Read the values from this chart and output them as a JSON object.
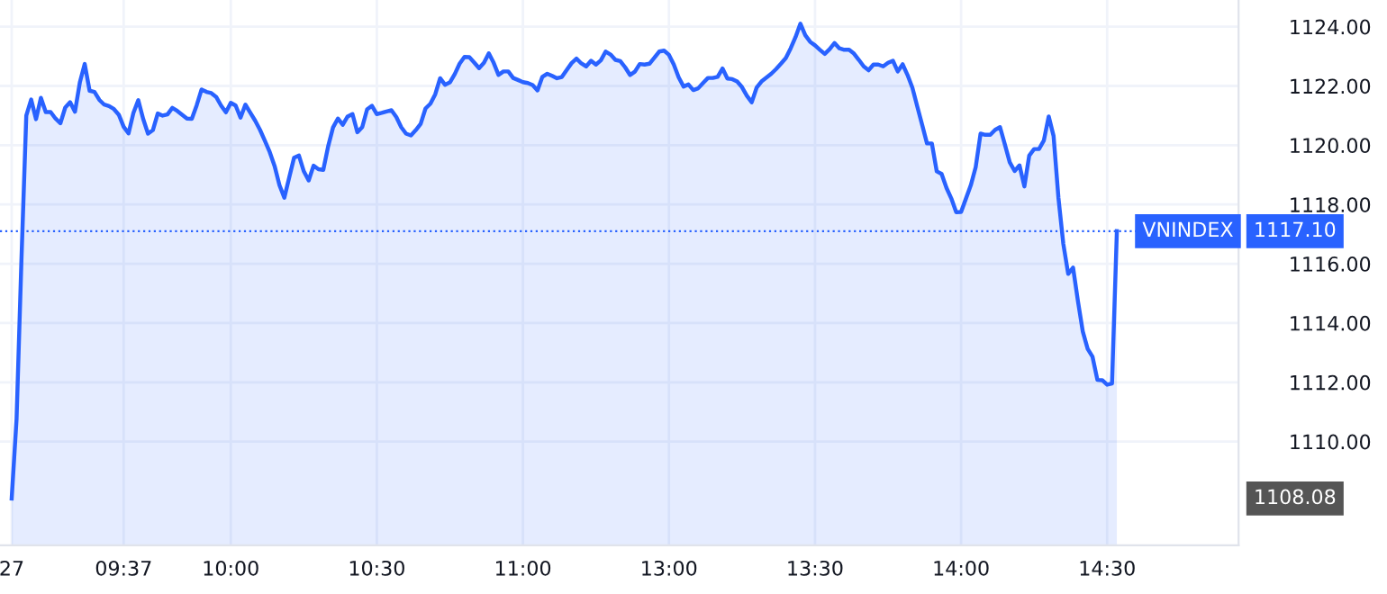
{
  "chart_data": {
    "type": "area",
    "categories": [
      "27",
      null,
      null,
      null,
      null,
      null,
      null,
      null,
      null,
      null,
      null,
      null,
      null,
      null,
      null,
      null,
      null,
      null,
      null,
      null,
      null,
      null,
      null,
      "09:37",
      null,
      null,
      null,
      null,
      null,
      null,
      null,
      null,
      null,
      null,
      null,
      null,
      null,
      null,
      null,
      null,
      null,
      null,
      null,
      null,
      null,
      "10:00",
      null,
      null,
      null,
      null,
      null,
      null,
      null,
      null,
      null,
      null,
      null,
      null,
      null,
      null,
      null,
      null,
      null,
      null,
      null,
      null,
      null,
      null,
      null,
      null,
      null,
      null,
      null,
      null,
      null,
      "10:30",
      null,
      null,
      null,
      null,
      null,
      null,
      null,
      null,
      null,
      null,
      null,
      null,
      null,
      null,
      null,
      null,
      null,
      null,
      null,
      null,
      null,
      null,
      null,
      null,
      null,
      null,
      null,
      null,
      null,
      "11:00",
      null,
      null,
      null,
      null,
      null,
      null,
      null,
      null,
      null,
      null,
      null,
      null,
      null,
      null,
      null,
      null,
      null,
      null,
      null,
      null,
      null,
      null,
      null,
      null,
      null,
      null,
      null,
      null,
      null,
      "13:00",
      null,
      null,
      null,
      null,
      null,
      null,
      null,
      null,
      null,
      null,
      null,
      null,
      null,
      null,
      null,
      null,
      null,
      null,
      null,
      null,
      null,
      null,
      null,
      null,
      null,
      null,
      null,
      null,
      null,
      "13:30",
      null,
      null,
      null,
      null,
      null,
      null,
      null,
      null,
      null,
      null,
      null,
      null,
      null,
      null,
      null,
      null,
      null,
      null,
      null,
      null,
      null,
      null,
      null,
      null,
      null,
      null,
      null,
      null,
      null,
      "14:00",
      null,
      null,
      null,
      null,
      null,
      null,
      null,
      null,
      null,
      null,
      null,
      null,
      null,
      null,
      null,
      null,
      null,
      null,
      null,
      null,
      null,
      null,
      null,
      null,
      null,
      null,
      null,
      null,
      null,
      "14:30",
      null,
      null
    ],
    "series": [
      {
        "name": "VNINDEX",
        "color": "#2962ff",
        "values": [
          1108.08,
          1110.76,
          1116.11,
          1121.0,
          1121.54,
          1120.88,
          1121.6,
          1121.12,
          1121.12,
          1120.9,
          1120.74,
          1121.27,
          1121.45,
          1121.13,
          1122.12,
          1122.74,
          1121.84,
          1121.8,
          1121.53,
          1121.37,
          1121.32,
          1121.22,
          1121.03,
          1120.62,
          1120.4,
          1121.09,
          1121.52,
          1120.89,
          1120.39,
          1120.51,
          1121.07,
          1121.0,
          1121.04,
          1121.26,
          1121.16,
          1121.03,
          1120.9,
          1120.89,
          1121.35,
          1121.88,
          1121.8,
          1121.76,
          1121.63,
          1121.34,
          1121.11,
          1121.43,
          1121.34,
          1120.93,
          1121.37,
          1121.1,
          1120.83,
          1120.52,
          1120.15,
          1119.77,
          1119.3,
          1118.65,
          1118.23,
          1118.91,
          1119.58,
          1119.65,
          1119.12,
          1118.81,
          1119.31,
          1119.19,
          1119.17,
          1119.96,
          1120.6,
          1120.9,
          1120.69,
          1120.97,
          1121.05,
          1120.44,
          1120.61,
          1121.21,
          1121.33,
          1121.05,
          1121.09,
          1121.14,
          1121.18,
          1120.95,
          1120.61,
          1120.39,
          1120.33,
          1120.51,
          1120.72,
          1121.24,
          1121.4,
          1121.72,
          1122.26,
          1122.04,
          1122.12,
          1122.4,
          1122.75,
          1122.98,
          1122.97,
          1122.79,
          1122.6,
          1122.78,
          1123.1,
          1122.78,
          1122.37,
          1122.49,
          1122.49,
          1122.27,
          1122.2,
          1122.13,
          1122.1,
          1122.03,
          1121.85,
          1122.31,
          1122.41,
          1122.34,
          1122.26,
          1122.3,
          1122.54,
          1122.77,
          1122.92,
          1122.76,
          1122.66,
          1122.85,
          1122.72,
          1122.86,
          1123.16,
          1123.06,
          1122.88,
          1122.84,
          1122.63,
          1122.37,
          1122.48,
          1122.74,
          1122.72,
          1122.75,
          1122.95,
          1123.16,
          1123.19,
          1123.05,
          1122.72,
          1122.29,
          1121.98,
          1122.05,
          1121.86,
          1121.92,
          1122.1,
          1122.27,
          1122.27,
          1122.31,
          1122.59,
          1122.25,
          1122.23,
          1122.15,
          1121.96,
          1121.67,
          1121.45,
          1121.94,
          1122.15,
          1122.28,
          1122.41,
          1122.57,
          1122.75,
          1122.94,
          1123.27,
          1123.65,
          1124.1,
          1123.71,
          1123.49,
          1123.37,
          1123.22,
          1123.08,
          1123.24,
          1123.45,
          1123.27,
          1123.22,
          1123.22,
          1123.09,
          1122.88,
          1122.66,
          1122.53,
          1122.72,
          1122.72,
          1122.66,
          1122.78,
          1122.85,
          1122.49,
          1122.73,
          1122.37,
          1121.94,
          1121.31,
          1120.69,
          1120.06,
          1120.06,
          1119.12,
          1119.03,
          1118.56,
          1118.2,
          1117.74,
          1117.75,
          1118.2,
          1118.65,
          1119.26,
          1120.39,
          1120.35,
          1120.35,
          1120.52,
          1120.61,
          1120.02,
          1119.42,
          1119.13,
          1119.32,
          1118.61,
          1119.65,
          1119.87,
          1119.87,
          1120.16,
          1120.97,
          1120.31,
          1118.22,
          1116.67,
          1115.66,
          1115.87,
          1114.74,
          1113.71,
          1113.13,
          1112.86,
          1112.08,
          1112.07,
          1111.92,
          1111.96,
          1117.1
        ]
      }
    ],
    "ylim": [
      1106.5,
      1124.9
    ],
    "yticks": [
      {
        "value": 1110,
        "label": "1110.00"
      },
      {
        "value": 1112,
        "label": "1112.00"
      },
      {
        "value": 1114,
        "label": "1114.00"
      },
      {
        "value": 1116,
        "label": "1116.00"
      },
      {
        "value": 1118,
        "label": "1118.00"
      },
      {
        "value": 1120,
        "label": "1120.00"
      },
      {
        "value": 1122,
        "label": "1122.00"
      },
      {
        "value": 1124,
        "label": "1124.00"
      }
    ],
    "ref_lines": [
      {
        "axis": "y",
        "value": 1117.1,
        "label": "1117.10",
        "color": "#2962ff",
        "line_style": "dotted"
      }
    ],
    "annotations": [
      "1108.08"
    ],
    "grid": true,
    "legend": "right"
  }
}
